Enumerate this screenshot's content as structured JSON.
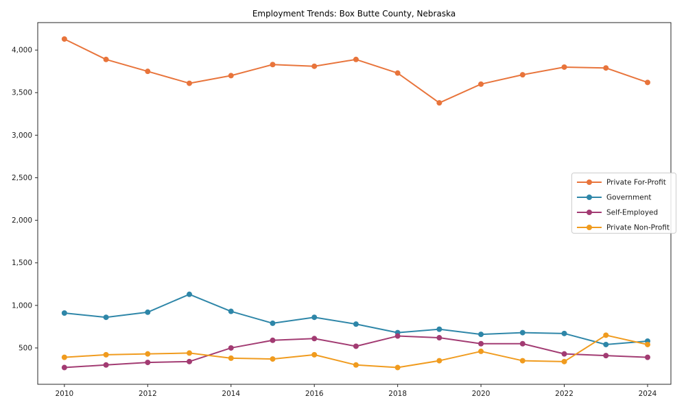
{
  "figure": {
    "background_color": "#ffffff",
    "text_color": "#1a1a1a",
    "spine_color": "#262626"
  },
  "chart_data": {
    "type": "line",
    "title": "Employment Trends: Box Butte County, Nebraska",
    "xlabel": "",
    "ylabel": "",
    "grid": false,
    "marker": "circle",
    "x": [
      2010,
      2011,
      2012,
      2013,
      2014,
      2015,
      2016,
      2017,
      2018,
      2019,
      2020,
      2021,
      2022,
      2023,
      2024
    ],
    "series": [
      {
        "name": "Private For-Profit",
        "color": "#E8743B",
        "values": [
          4130,
          3890,
          3750,
          3610,
          3700,
          3830,
          3810,
          3890,
          3730,
          3380,
          3600,
          3710,
          3800,
          3790,
          3620
        ]
      },
      {
        "name": "Government",
        "color": "#2E86A8",
        "values": [
          910,
          860,
          920,
          1130,
          930,
          790,
          860,
          780,
          680,
          720,
          660,
          680,
          670,
          540,
          580
        ]
      },
      {
        "name": "Self-Employed",
        "color": "#A23B72",
        "values": [
          270,
          300,
          330,
          340,
          500,
          590,
          610,
          520,
          640,
          620,
          550,
          550,
          430,
          410,
          390
        ]
      },
      {
        "name": "Private Non-Profit",
        "color": "#F09B1E",
        "values": [
          390,
          420,
          430,
          440,
          380,
          370,
          420,
          300,
          270,
          350,
          460,
          350,
          340,
          650,
          540
        ]
      }
    ],
    "xlim": [
      2009.36,
      2024.56
    ],
    "ylim": [
      73,
      4323
    ],
    "xticks": {
      "values": [
        2010,
        2012,
        2014,
        2016,
        2018,
        2020,
        2022,
        2024
      ],
      "labels": [
        "2010",
        "2012",
        "2014",
        "2016",
        "2018",
        "2020",
        "2022",
        "2024"
      ]
    },
    "yticks": {
      "values": [
        500,
        1000,
        1500,
        2000,
        2500,
        3000,
        3500,
        4000
      ],
      "labels": [
        "500",
        "1,000",
        "1,500",
        "2,000",
        "2,500",
        "3,000",
        "3,500",
        "4,000"
      ]
    },
    "legend": {
      "location": "center-right",
      "border_color": "#cccccc",
      "background_color": "#ffffff"
    }
  }
}
